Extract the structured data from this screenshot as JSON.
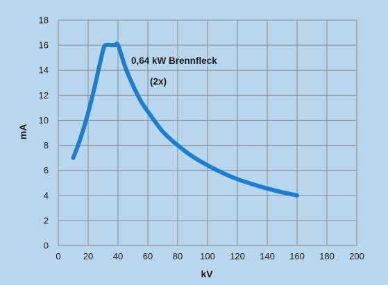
{
  "chart_data": {
    "type": "line",
    "xlabel": "kV",
    "ylabel": "mA",
    "xlim": [
      0,
      200
    ],
    "ylim": [
      0,
      18
    ],
    "x_ticks": [
      0,
      20,
      40,
      60,
      80,
      100,
      120,
      140,
      160,
      180,
      200
    ],
    "y_ticks": [
      0,
      2,
      4,
      6,
      8,
      10,
      12,
      14,
      16,
      18
    ],
    "grid": true,
    "annotations": [
      "0,64 kW Brennfleck",
      "(2x)"
    ],
    "series": [
      {
        "color": "#1a7fd0",
        "x": [
          10,
          15,
          20,
          25,
          30,
          32,
          35,
          38,
          40,
          45,
          50,
          55,
          60,
          70,
          80,
          90,
          100,
          110,
          120,
          130,
          140,
          150,
          160
        ],
        "y": [
          7.0,
          8.6,
          10.6,
          13.0,
          15.6,
          16.0,
          16.0,
          16.0,
          16.0,
          14.2,
          12.8,
          11.6,
          10.7,
          9.1,
          8.0,
          7.1,
          6.4,
          5.8,
          5.3,
          4.9,
          4.55,
          4.25,
          4.0
        ]
      }
    ]
  },
  "colors": {
    "background": "#b9d6ef",
    "grid": "#8a8a8a",
    "line": "#1a7fd0"
  }
}
